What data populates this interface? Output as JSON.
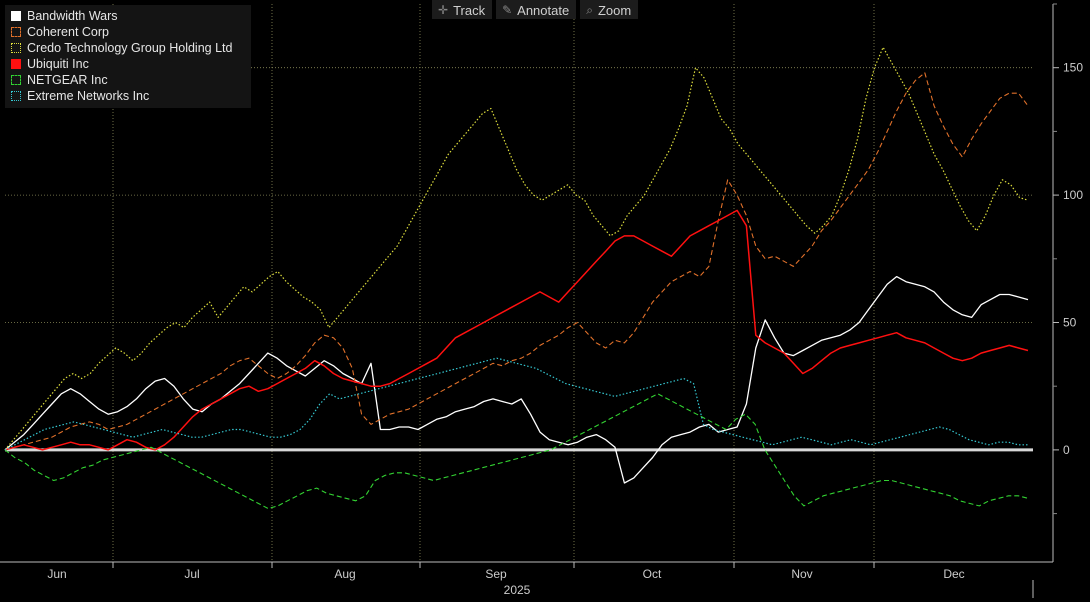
{
  "toolbar": {
    "track_label": "Track",
    "annotate_label": "Annotate",
    "zoom_label": "Zoom"
  },
  "colors": {
    "background": "#000000",
    "grid": "#8a8a5a",
    "zero_line": "#d8d8d8"
  },
  "chart_data": {
    "type": "line",
    "x_labels": [
      "Jun",
      "Jul",
      "Aug",
      "Sep",
      "Oct",
      "Nov",
      "Dec"
    ],
    "year_label": "2025",
    "y_ticks": [
      0,
      50,
      100,
      150
    ],
    "ylim": [
      -44,
      175
    ],
    "grid": true,
    "legend_position": "top-left",
    "series": [
      {
        "name": "Bandwidth Wars",
        "color": "#ffffff",
        "style": "solid",
        "width": 1.3,
        "values": [
          0,
          3,
          6,
          10,
          14,
          18,
          22,
          24,
          22,
          19,
          16,
          14,
          15,
          17,
          20,
          24,
          27,
          28,
          25,
          20,
          16,
          15,
          18,
          20,
          23,
          26,
          30,
          34,
          38,
          36,
          33,
          31,
          29,
          32,
          35,
          33,
          30,
          28,
          26,
          34,
          8,
          8,
          9,
          9,
          8,
          10,
          12,
          13,
          15,
          16,
          17,
          19,
          20,
          19,
          18,
          20,
          14,
          7,
          4,
          3,
          2,
          3,
          5,
          6,
          4,
          1,
          -13,
          -11,
          -7,
          -3,
          2,
          5,
          6,
          7,
          9,
          10,
          7,
          8,
          9,
          18,
          40,
          51,
          44,
          38,
          37,
          39,
          41,
          43,
          44,
          45,
          47,
          50,
          55,
          60,
          65,
          68,
          66,
          65,
          64,
          62,
          58,
          55,
          53,
          52,
          57,
          59,
          61,
          61,
          60,
          59
        ]
      },
      {
        "name": "Coherent Corp",
        "color": "#e0702a",
        "style": "dashed",
        "width": 1.1,
        "values": [
          0,
          1,
          2,
          3,
          4,
          5,
          7,
          9,
          10,
          11,
          10,
          8,
          9,
          10,
          12,
          14,
          16,
          18,
          20,
          22,
          24,
          26,
          28,
          30,
          33,
          35,
          36,
          33,
          30,
          28,
          30,
          33,
          37,
          42,
          45,
          44,
          40,
          32,
          14,
          10,
          12,
          14,
          15,
          16,
          18,
          20,
          22,
          24,
          26,
          28,
          30,
          32,
          34,
          33,
          35,
          36,
          38,
          41,
          43,
          45,
          48,
          50,
          46,
          42,
          40,
          43,
          42,
          46,
          52,
          58,
          62,
          66,
          68,
          70,
          68,
          72,
          90,
          106,
          100,
          92,
          80,
          75,
          76,
          74,
          72,
          76,
          80,
          86,
          90,
          95,
          100,
          105,
          110,
          117,
          125,
          133,
          140,
          145,
          148,
          135,
          127,
          120,
          115,
          122,
          128,
          133,
          138,
          140,
          140,
          135
        ]
      },
      {
        "name": "Credo Technology Group Holding Ltd",
        "color": "#dede3c",
        "style": "dotted",
        "width": 1.2,
        "values": [
          0,
          4,
          8,
          12,
          16,
          20,
          24,
          28,
          30,
          28,
          30,
          34,
          37,
          40,
          38,
          35,
          38,
          42,
          45,
          48,
          50,
          48,
          52,
          55,
          58,
          52,
          56,
          60,
          64,
          62,
          65,
          68,
          70,
          66,
          63,
          60,
          58,
          55,
          48,
          52,
          56,
          60,
          64,
          68,
          72,
          76,
          80,
          86,
          92,
          98,
          104,
          110,
          116,
          120,
          124,
          128,
          132,
          134,
          126,
          118,
          110,
          104,
          100,
          98,
          100,
          102,
          104,
          100,
          98,
          92,
          88,
          84,
          86,
          92,
          96,
          100,
          106,
          112,
          118,
          126,
          135,
          150,
          146,
          138,
          130,
          126,
          120,
          116,
          112,
          108,
          104,
          100,
          96,
          92,
          88,
          85,
          88,
          92,
          100,
          110,
          122,
          138,
          150,
          158,
          152,
          146,
          140,
          132,
          124,
          116,
          110,
          103,
          96,
          90,
          86,
          92,
          100,
          106,
          104,
          99,
          98
        ]
      },
      {
        "name": "Ubiquiti Inc",
        "color": "#ff1010",
        "style": "solid",
        "width": 1.5,
        "values": [
          0,
          1,
          2,
          1,
          0,
          1,
          2,
          3,
          2,
          2,
          1,
          0,
          2,
          4,
          3,
          1,
          0,
          2,
          5,
          9,
          13,
          16,
          18,
          20,
          22,
          24,
          25,
          23,
          24,
          26,
          28,
          30,
          32,
          35,
          33,
          30,
          28,
          27,
          26,
          25,
          25,
          26,
          28,
          30,
          32,
          34,
          36,
          40,
          44,
          46,
          48,
          50,
          52,
          54,
          56,
          58,
          60,
          62,
          60,
          58,
          62,
          66,
          70,
          74,
          78,
          82,
          84,
          84,
          82,
          80,
          78,
          76,
          80,
          84,
          86,
          88,
          90,
          92,
          94,
          88,
          45,
          42,
          40,
          38,
          34,
          30,
          32,
          35,
          38,
          40,
          41,
          42,
          43,
          44,
          45,
          46,
          44,
          43,
          42,
          40,
          38,
          36,
          35,
          36,
          38,
          39,
          40,
          41,
          40,
          39
        ]
      },
      {
        "name": "NETGEAR Inc",
        "color": "#32d232",
        "style": "dashed",
        "width": 1.1,
        "values": [
          0,
          -3,
          -5,
          -8,
          -10,
          -12,
          -11,
          -9,
          -7,
          -6,
          -4,
          -3,
          -2,
          -1,
          0,
          1,
          -1,
          -3,
          -5,
          -7,
          -9,
          -11,
          -13,
          -15,
          -17,
          -19,
          -21,
          -23,
          -22,
          -20,
          -18,
          -16,
          -15,
          -17,
          -18,
          -19,
          -20,
          -18,
          -12,
          -10,
          -9,
          -9,
          -10,
          -11,
          -12,
          -11,
          -10,
          -9,
          -8,
          -7,
          -6,
          -5,
          -4,
          -3,
          -2,
          -1,
          0,
          2,
          4,
          6,
          8,
          10,
          12,
          14,
          16,
          18,
          20,
          22,
          20,
          18,
          16,
          14,
          12,
          10,
          8,
          12,
          14,
          10,
          0,
          -6,
          -12,
          -18,
          -22,
          -20,
          -18,
          -17,
          -16,
          -15,
          -14,
          -13,
          -12,
          -12,
          -13,
          -14,
          -15,
          -16,
          -17,
          -18,
          -20,
          -21,
          -22,
          -20,
          -19,
          -18,
          -18,
          -19
        ]
      },
      {
        "name": "Extreme Networks Inc",
        "color": "#35c8d2",
        "style": "dotted",
        "width": 1.2,
        "values": [
          0,
          2,
          4,
          6,
          8,
          9,
          10,
          11,
          10,
          9,
          8,
          7,
          6,
          5,
          6,
          7,
          8,
          7,
          6,
          5,
          5,
          6,
          7,
          8,
          8,
          7,
          6,
          5,
          5,
          6,
          8,
          12,
          18,
          22,
          20,
          21,
          22,
          23,
          24,
          25,
          26,
          27,
          28,
          29,
          30,
          31,
          32,
          33,
          34,
          35,
          36,
          35,
          34,
          33,
          32,
          30,
          28,
          26,
          25,
          24,
          23,
          22,
          21,
          22,
          23,
          24,
          25,
          26,
          27,
          28,
          26,
          10,
          8,
          7,
          6,
          5,
          4,
          3,
          2,
          3,
          4,
          5,
          4,
          3,
          2,
          3,
          4,
          3,
          2,
          3,
          4,
          5,
          6,
          7,
          8,
          9,
          8,
          6,
          4,
          3,
          2,
          3,
          3,
          2,
          2
        ]
      }
    ]
  }
}
